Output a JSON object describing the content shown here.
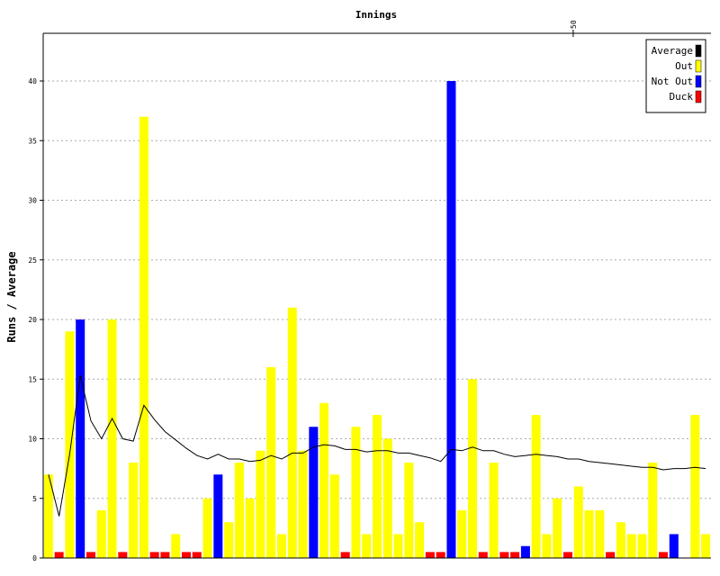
{
  "chart_data": {
    "type": "bar",
    "title": "Innings",
    "xlabel": "",
    "ylabel": "Runs / Average",
    "ylim": [
      0,
      44
    ],
    "y_ticks": [
      0,
      5,
      10,
      15,
      20,
      25,
      30,
      35,
      40
    ],
    "x_tick_labels": [
      {
        "innings": 50,
        "label": "50"
      }
    ],
    "grid": true,
    "legend_position": "top-right",
    "legend": [
      {
        "label": "Average",
        "color": "#000000"
      },
      {
        "label": "Out",
        "color": "#ffff00"
      },
      {
        "label": "Not Out",
        "color": "#0000ff"
      },
      {
        "label": "Duck",
        "color": "#ff0000"
      }
    ],
    "innings": [
      {
        "n": 1,
        "runs": 7,
        "status": "out"
      },
      {
        "n": 2,
        "runs": 0,
        "status": "duck"
      },
      {
        "n": 3,
        "runs": 19,
        "status": "out"
      },
      {
        "n": 4,
        "runs": 20,
        "status": "notout"
      },
      {
        "n": 5,
        "runs": 0,
        "status": "duck"
      },
      {
        "n": 6,
        "runs": 4,
        "status": "out"
      },
      {
        "n": 7,
        "runs": 20,
        "status": "out"
      },
      {
        "n": 8,
        "runs": 0,
        "status": "duck"
      },
      {
        "n": 9,
        "runs": 8,
        "status": "out"
      },
      {
        "n": 10,
        "runs": 37,
        "status": "out"
      },
      {
        "n": 11,
        "runs": 0,
        "status": "duck"
      },
      {
        "n": 12,
        "runs": 0,
        "status": "duck"
      },
      {
        "n": 13,
        "runs": 2,
        "status": "out"
      },
      {
        "n": 14,
        "runs": 0,
        "status": "duck"
      },
      {
        "n": 15,
        "runs": 0,
        "status": "duck"
      },
      {
        "n": 16,
        "runs": 5,
        "status": "out"
      },
      {
        "n": 17,
        "runs": 7,
        "status": "notout"
      },
      {
        "n": 18,
        "runs": 3,
        "status": "out"
      },
      {
        "n": 19,
        "runs": 8,
        "status": "out"
      },
      {
        "n": 20,
        "runs": 5,
        "status": "out"
      },
      {
        "n": 21,
        "runs": 9,
        "status": "out"
      },
      {
        "n": 22,
        "runs": 16,
        "status": "out"
      },
      {
        "n": 23,
        "runs": 2,
        "status": "out"
      },
      {
        "n": 24,
        "runs": 21,
        "status": "out"
      },
      {
        "n": 25,
        "runs": 9,
        "status": "out"
      },
      {
        "n": 26,
        "runs": 11,
        "status": "notout"
      },
      {
        "n": 27,
        "runs": 13,
        "status": "out"
      },
      {
        "n": 28,
        "runs": 7,
        "status": "out"
      },
      {
        "n": 29,
        "runs": 0,
        "status": "duck"
      },
      {
        "n": 30,
        "runs": 11,
        "status": "out"
      },
      {
        "n": 31,
        "runs": 2,
        "status": "out"
      },
      {
        "n": 32,
        "runs": 12,
        "status": "out"
      },
      {
        "n": 33,
        "runs": 10,
        "status": "out"
      },
      {
        "n": 34,
        "runs": 2,
        "status": "out"
      },
      {
        "n": 35,
        "runs": 8,
        "status": "out"
      },
      {
        "n": 36,
        "runs": 3,
        "status": "out"
      },
      {
        "n": 37,
        "runs": 0,
        "status": "duck"
      },
      {
        "n": 38,
        "runs": 0,
        "status": "duck"
      },
      {
        "n": 39,
        "runs": 40,
        "status": "notout"
      },
      {
        "n": 40,
        "runs": 4,
        "status": "out"
      },
      {
        "n": 41,
        "runs": 15,
        "status": "out"
      },
      {
        "n": 42,
        "runs": 0,
        "status": "duck"
      },
      {
        "n": 43,
        "runs": 8,
        "status": "out"
      },
      {
        "n": 44,
        "runs": 0,
        "status": "duck"
      },
      {
        "n": 45,
        "runs": 0,
        "status": "duck"
      },
      {
        "n": 46,
        "runs": 1,
        "status": "notout"
      },
      {
        "n": 47,
        "runs": 12,
        "status": "out"
      },
      {
        "n": 48,
        "runs": 2,
        "status": "out"
      },
      {
        "n": 49,
        "runs": 5,
        "status": "out"
      },
      {
        "n": 50,
        "runs": 0,
        "status": "duck"
      },
      {
        "n": 51,
        "runs": 6,
        "status": "out"
      },
      {
        "n": 52,
        "runs": 4,
        "status": "out"
      },
      {
        "n": 53,
        "runs": 4,
        "status": "out"
      },
      {
        "n": 54,
        "runs": 0,
        "status": "duck"
      },
      {
        "n": 55,
        "runs": 3,
        "status": "out"
      },
      {
        "n": 56,
        "runs": 2,
        "status": "out"
      },
      {
        "n": 57,
        "runs": 2,
        "status": "out"
      },
      {
        "n": 58,
        "runs": 8,
        "status": "out"
      },
      {
        "n": 59,
        "runs": 0,
        "status": "duck"
      },
      {
        "n": 60,
        "runs": 2,
        "status": "notout"
      },
      {
        "n": 61,
        "runs": null,
        "status": "none"
      },
      {
        "n": 62,
        "runs": 12,
        "status": "out"
      },
      {
        "n": 63,
        "runs": 2,
        "status": "out"
      }
    ],
    "average": [
      7,
      3.5,
      8.7,
      15.3,
      11.5,
      10,
      11.7,
      10,
      9.8,
      12.8,
      11.6,
      10.6,
      9.9,
      9.2,
      8.6,
      8.3,
      8.7,
      8.3,
      8.3,
      8.1,
      8.2,
      8.6,
      8.3,
      8.8,
      8.8,
      9.3,
      9.5,
      9.4,
      9.1,
      9.1,
      8.9,
      9.0,
      9.0,
      8.8,
      8.8,
      8.6,
      8.4,
      8.1,
      9.1,
      9.0,
      9.3,
      9.0,
      9.0,
      8.7,
      8.5,
      8.6,
      8.7,
      8.6,
      8.5,
      8.3,
      8.3,
      8.1,
      8.0,
      7.9,
      7.8,
      7.7,
      7.6,
      7.6,
      7.4,
      7.5,
      7.5,
      7.6,
      7.5
    ]
  }
}
